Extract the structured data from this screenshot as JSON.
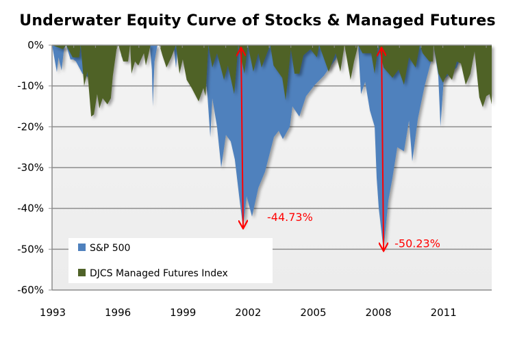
{
  "chart_data": {
    "type": "area",
    "title": "Underwater Equity Curve of Stocks & Managed Futures",
    "xlabel": "",
    "ylabel": "",
    "xlim": [
      1993,
      2013.25
    ],
    "ylim": [
      -60,
      0
    ],
    "x_ticks": [
      "1993",
      "1996",
      "1999",
      "2002",
      "2005",
      "2008",
      "2011"
    ],
    "x_tick_values": [
      1993,
      1996,
      1999,
      2002,
      2005,
      2008,
      2011
    ],
    "y_ticks": [
      "0%",
      "-10%",
      "-20%",
      "-30%",
      "-40%",
      "-50%",
      "-60%"
    ],
    "y_tick_values": [
      0,
      -10,
      -20,
      -30,
      -40,
      -50,
      -60
    ],
    "grid": "horizontal",
    "legend_position": "bottom-left",
    "series": [
      {
        "name": "S&P 500",
        "color": "#4f81bd",
        "points": [
          [
            1993.0,
            0
          ],
          [
            1993.1,
            -3
          ],
          [
            1993.22,
            -6.6
          ],
          [
            1993.3,
            -3
          ],
          [
            1993.44,
            -6.2
          ],
          [
            1993.55,
            -1
          ],
          [
            1993.65,
            0
          ],
          [
            1993.85,
            -3.5
          ],
          [
            1993.98,
            -3.5
          ],
          [
            1994.1,
            -4
          ],
          [
            1994.4,
            -7
          ],
          [
            1994.7,
            -8
          ],
          [
            1994.95,
            -6
          ],
          [
            1995.15,
            -2
          ],
          [
            1995.3,
            0
          ],
          [
            1996.15,
            0
          ],
          [
            1996.2,
            -3
          ],
          [
            1996.3,
            0
          ],
          [
            1997.5,
            0
          ],
          [
            1997.6,
            -6
          ],
          [
            1997.64,
            -15
          ],
          [
            1997.72,
            -4
          ],
          [
            1997.85,
            0
          ],
          [
            1998.6,
            0
          ],
          [
            1998.71,
            -5.6
          ],
          [
            1998.8,
            0
          ],
          [
            1999.9,
            0
          ],
          [
            2000.0,
            -5
          ],
          [
            2000.07,
            -8
          ],
          [
            2000.16,
            -12.5
          ],
          [
            2000.29,
            -22.5
          ],
          [
            2000.38,
            -13
          ],
          [
            2000.6,
            -20
          ],
          [
            2000.79,
            -30
          ],
          [
            2001.01,
            -22
          ],
          [
            2001.23,
            -23.6
          ],
          [
            2001.42,
            -28
          ],
          [
            2001.64,
            -38
          ],
          [
            2001.8,
            -44.73
          ],
          [
            2001.96,
            -37
          ],
          [
            2002.21,
            -42
          ],
          [
            2002.5,
            -35
          ],
          [
            2002.81,
            -31
          ],
          [
            2003.22,
            -22.5
          ],
          [
            2003.44,
            -21
          ],
          [
            2003.63,
            -23
          ],
          [
            2003.95,
            -20
          ],
          [
            2004.07,
            -15
          ],
          [
            2004.39,
            -17.5
          ],
          [
            2004.7,
            -12.5
          ],
          [
            2005.11,
            -9.7
          ],
          [
            2005.52,
            -7.5
          ],
          [
            2005.74,
            -5.8
          ],
          [
            2006.06,
            -3.5
          ],
          [
            2006.38,
            0
          ],
          [
            2007.1,
            0
          ],
          [
            2007.23,
            -12
          ],
          [
            2007.42,
            -9
          ],
          [
            2007.64,
            -16
          ],
          [
            2007.86,
            -20
          ],
          [
            2007.95,
            -32.5
          ],
          [
            2008.05,
            -40
          ],
          [
            2008.27,
            -50.23
          ],
          [
            2008.49,
            -38
          ],
          [
            2008.68,
            -32.5
          ],
          [
            2008.9,
            -25
          ],
          [
            2009.21,
            -26
          ],
          [
            2009.44,
            -18.5
          ],
          [
            2009.59,
            -28.5
          ],
          [
            2009.85,
            -18
          ],
          [
            2010.16,
            -10
          ],
          [
            2010.48,
            -3.5
          ],
          [
            2010.57,
            0
          ],
          [
            2010.79,
            -7.5
          ],
          [
            2010.89,
            -20
          ],
          [
            2011.04,
            -8.5
          ],
          [
            2011.33,
            -7
          ],
          [
            2011.64,
            -5.5
          ],
          [
            2011.9,
            -2
          ],
          [
            2012.2,
            -3
          ],
          [
            2012.5,
            0
          ],
          [
            2013.25,
            0
          ]
        ]
      },
      {
        "name": "DJCS Managed Futures Index",
        "color": "#4f6228",
        "points": [
          [
            1993.0,
            0
          ],
          [
            1993.5,
            -1
          ],
          [
            1993.65,
            0
          ],
          [
            1993.95,
            -3
          ],
          [
            1994.25,
            -3
          ],
          [
            1994.32,
            0
          ],
          [
            1994.48,
            -10
          ],
          [
            1994.63,
            -6.5
          ],
          [
            1994.8,
            -17.5
          ],
          [
            1994.93,
            -17
          ],
          [
            1995.08,
            -12
          ],
          [
            1995.18,
            -15.5
          ],
          [
            1995.33,
            -13
          ],
          [
            1995.55,
            -14.5
          ],
          [
            1995.71,
            -13
          ],
          [
            1995.8,
            -7.5
          ],
          [
            1995.97,
            -1
          ],
          [
            1996.06,
            0
          ],
          [
            1996.28,
            -4
          ],
          [
            1996.5,
            -4
          ],
          [
            1996.6,
            0
          ],
          [
            1996.66,
            -7
          ],
          [
            1996.82,
            -4
          ],
          [
            1996.97,
            -5
          ],
          [
            1997.23,
            -2
          ],
          [
            1997.32,
            -5
          ],
          [
            1997.54,
            0
          ],
          [
            1997.95,
            0
          ],
          [
            1998.08,
            -2.5
          ],
          [
            1998.27,
            -5.5
          ],
          [
            1998.49,
            -3
          ],
          [
            1998.71,
            0
          ],
          [
            1998.87,
            -7
          ],
          [
            1999.02,
            -3.5
          ],
          [
            1999.2,
            -8.5
          ],
          [
            1999.43,
            -10.5
          ],
          [
            1999.75,
            -13.8
          ],
          [
            1999.97,
            -10.5
          ],
          [
            2000.07,
            -12.5
          ],
          [
            2000.2,
            0
          ],
          [
            2000.38,
            -5.5
          ],
          [
            2000.6,
            -2
          ],
          [
            2000.92,
            -8.5
          ],
          [
            2001.1,
            -5
          ],
          [
            2001.39,
            -12
          ],
          [
            2001.58,
            0
          ],
          [
            2001.86,
            -7
          ],
          [
            2002.02,
            0
          ],
          [
            2002.27,
            -6.5
          ],
          [
            2002.5,
            -2
          ],
          [
            2002.65,
            -5.5
          ],
          [
            2002.9,
            -2
          ],
          [
            2003.05,
            0
          ],
          [
            2003.2,
            -5
          ],
          [
            2003.6,
            -8
          ],
          [
            2003.76,
            -13.5
          ],
          [
            2004.0,
            -1
          ],
          [
            2004.17,
            -7
          ],
          [
            2004.39,
            -7
          ],
          [
            2004.58,
            -2.5
          ],
          [
            2004.9,
            -1
          ],
          [
            2005.2,
            -3
          ],
          [
            2005.3,
            0
          ],
          [
            2005.74,
            -6.5
          ],
          [
            2006.06,
            -2
          ],
          [
            2006.28,
            -6.5
          ],
          [
            2006.47,
            0
          ],
          [
            2006.75,
            -8.5
          ],
          [
            2006.91,
            -4
          ],
          [
            2007.1,
            0
          ],
          [
            2007.3,
            -2
          ],
          [
            2007.7,
            -2
          ],
          [
            2007.86,
            -7
          ],
          [
            2008.02,
            0
          ],
          [
            2008.27,
            -5.5
          ],
          [
            2008.68,
            -8
          ],
          [
            2008.96,
            -6
          ],
          [
            2009.21,
            -9.7
          ],
          [
            2009.44,
            -3
          ],
          [
            2009.75,
            -5.5
          ],
          [
            2009.94,
            0
          ],
          [
            2010.07,
            -2
          ],
          [
            2010.38,
            -4
          ],
          [
            2010.54,
            -4
          ],
          [
            2010.57,
            0
          ],
          [
            2010.8,
            -7
          ],
          [
            2011.01,
            -9.2
          ],
          [
            2011.2,
            -7
          ],
          [
            2011.42,
            -8.5
          ],
          [
            2011.64,
            -4
          ],
          [
            2011.83,
            -4.5
          ],
          [
            2012.05,
            -9.7
          ],
          [
            2012.27,
            -7
          ],
          [
            2012.46,
            -1.5
          ],
          [
            2012.68,
            -12.8
          ],
          [
            2012.84,
            -15.2
          ],
          [
            2013.0,
            -12.5
          ],
          [
            2013.15,
            -12
          ],
          [
            2013.25,
            -14.5
          ]
        ]
      }
    ],
    "annotations": [
      {
        "text": "-44.73%",
        "x": 2001.8,
        "value": -44.73
      },
      {
        "text": "-50.23%",
        "x": 2008.27,
        "value": -50.23
      }
    ]
  }
}
